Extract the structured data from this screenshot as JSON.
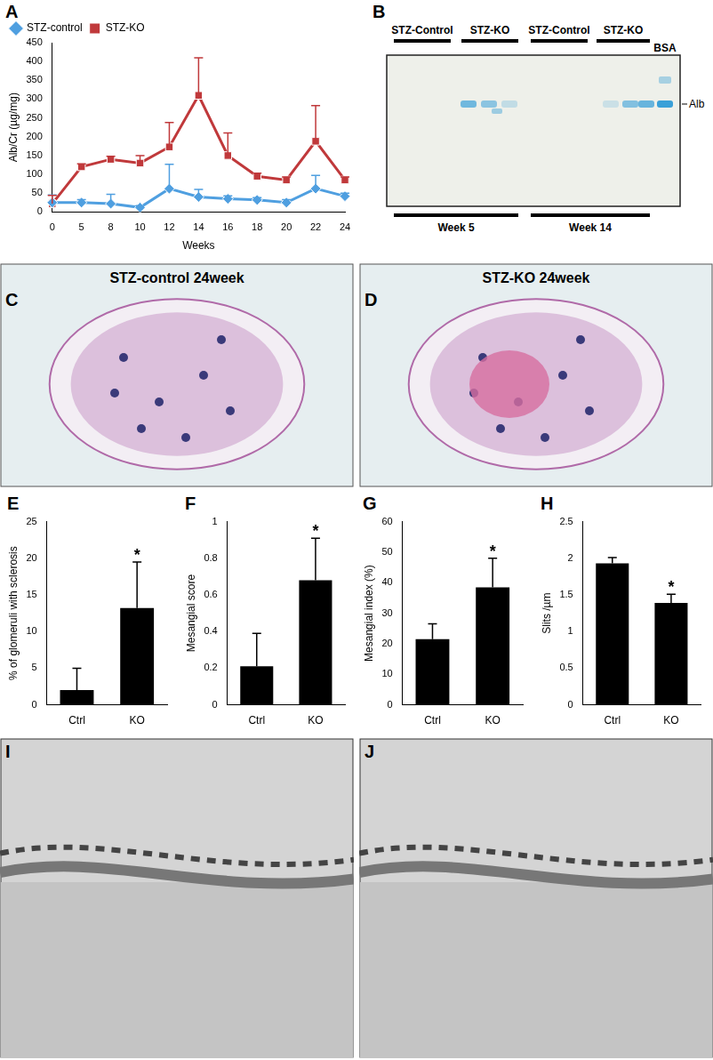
{
  "chart_data": [
    {
      "panel": "A",
      "type": "line",
      "x_label": "Weeks",
      "y_label": "Alb/Cr (µg/mg)",
      "categories": [
        "0",
        "5",
        "8",
        "10",
        "12",
        "14",
        "16",
        "18",
        "20",
        "22",
        "24"
      ],
      "series": [
        {
          "name": "STZ-control",
          "color": "#4f9fe0",
          "marker": "diamond",
          "values": [
            25,
            25,
            22,
            12,
            62,
            40,
            35,
            32,
            25,
            62,
            42
          ],
          "errors": [
            20,
            8,
            25,
            5,
            65,
            20,
            8,
            6,
            8,
            35,
            8
          ]
        },
        {
          "name": "STZ-KO",
          "color": "#c0393b",
          "marker": "square",
          "values": [
            22,
            120,
            140,
            130,
            173,
            310,
            150,
            95,
            85,
            188,
            85
          ],
          "errors": [
            22,
            8,
            8,
            20,
            65,
            100,
            60,
            8,
            8,
            95,
            8
          ]
        }
      ],
      "ylim": [
        0,
        450
      ],
      "yticks": [
        0,
        50,
        100,
        150,
        200,
        250,
        300,
        350,
        400,
        450
      ],
      "grid": false,
      "legend": "top-left"
    },
    {
      "panel": "E",
      "type": "bar",
      "y_label": "% of glomeruli with sclerosis",
      "categories": [
        "Ctrl",
        "KO"
      ],
      "values": [
        2,
        13.2
      ],
      "errors": [
        3,
        6.3
      ],
      "color": "#000000",
      "annotations": [
        {
          "category": "KO",
          "text": "*"
        }
      ],
      "ylim": [
        0,
        25
      ],
      "yticks": [
        0,
        5,
        10,
        15,
        20,
        25
      ],
      "grid": false
    },
    {
      "panel": "F",
      "type": "bar",
      "y_label": "Mesangial score",
      "categories": [
        "Ctrl",
        "KO"
      ],
      "values": [
        0.21,
        0.68
      ],
      "errors": [
        0.18,
        0.23
      ],
      "color": "#000000",
      "annotations": [
        {
          "category": "KO",
          "text": "*"
        }
      ],
      "ylim": [
        0,
        1
      ],
      "yticks": [
        0,
        0.2,
        0.4,
        0.6,
        0.8,
        1
      ],
      "grid": false
    },
    {
      "panel": "G",
      "type": "bar",
      "y_label": "Mesangial index (%)",
      "categories": [
        "Ctrl",
        "KO"
      ],
      "values": [
        21.5,
        38.5
      ],
      "errors": [
        5,
        9.5
      ],
      "color": "#000000",
      "annotations": [
        {
          "category": "KO",
          "text": "*"
        }
      ],
      "ylim": [
        0,
        60
      ],
      "yticks": [
        0,
        10,
        20,
        30,
        40,
        50,
        60
      ],
      "grid": false
    },
    {
      "panel": "H",
      "type": "bar",
      "y_label": "Slits /µm",
      "categories": [
        "Ctrl",
        "KO"
      ],
      "values": [
        1.93,
        1.39
      ],
      "errors": [
        0.08,
        0.12
      ],
      "color": "#000000",
      "annotations": [
        {
          "category": "KO",
          "text": "*"
        }
      ],
      "ylim": [
        0,
        2.5
      ],
      "yticks": [
        0,
        0.5,
        1,
        1.5,
        2,
        2.5
      ],
      "grid": false
    }
  ],
  "gel": {
    "panel": "B",
    "group_labels": [
      "STZ-Control",
      "STZ-KO",
      "STZ-Control",
      "STZ-KO"
    ],
    "week_labels": [
      "Week 5",
      "Week 14"
    ],
    "standard": "BSA",
    "band_label": "Alb"
  },
  "micrographs": [
    {
      "panel": "C",
      "title": "STZ-control 24week"
    },
    {
      "panel": "D",
      "title": "STZ-KO 24week"
    },
    {
      "panel": "I"
    },
    {
      "panel": "J"
    }
  ]
}
